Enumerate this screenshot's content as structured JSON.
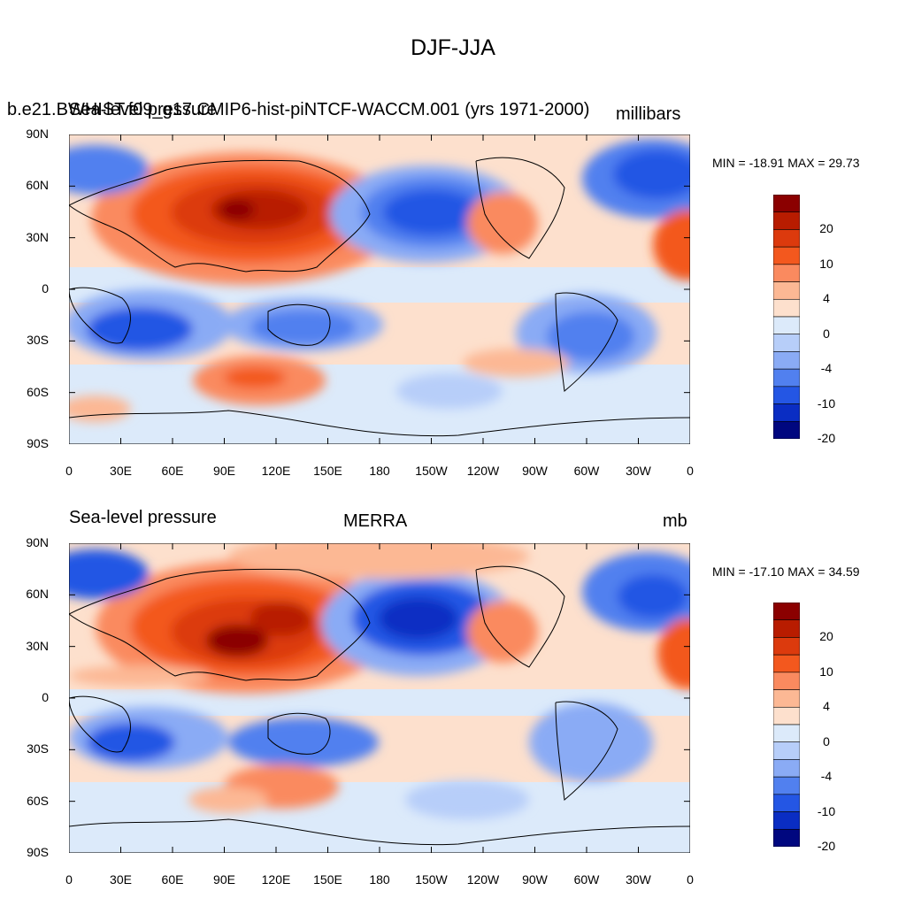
{
  "title": "DJF-JJA",
  "panels": [
    {
      "left_title": "b.e21.BWHIST.f09_g17.CMIP6-hist-piNTCF-WACCM.001 (yrs 1971-2000)",
      "overlap_title": "Sea-level pressure",
      "units": "millibars",
      "minmax": "MIN = -18.91 MAX =  29.73"
    },
    {
      "left_title": "Sea-level pressure",
      "center_title": "MERRA",
      "units": "mb",
      "minmax": "MIN = -17.10 MAX =  34.59"
    }
  ],
  "lat_labels": [
    "90N",
    "60N",
    "30N",
    "0",
    "30S",
    "60S",
    "90S"
  ],
  "lon_labels": [
    "0",
    "30E",
    "60E",
    "90E",
    "120E",
    "150E",
    "180",
    "150W",
    "120W",
    "90W",
    "60W",
    "30W",
    "0"
  ],
  "colorbar": {
    "labels": [
      "20",
      "10",
      "4",
      "0",
      "-4",
      "-10",
      "-20"
    ],
    "colors": [
      "#8b0000",
      "#b81c00",
      "#dc3a0d",
      "#f3581e",
      "#fa8a5f",
      "#fcb894",
      "#fde0cd",
      "#dceafa",
      "#b7cef9",
      "#8aabf5",
      "#5180ef",
      "#2456e4",
      "#0a2dc3",
      "#00077f"
    ]
  }
}
